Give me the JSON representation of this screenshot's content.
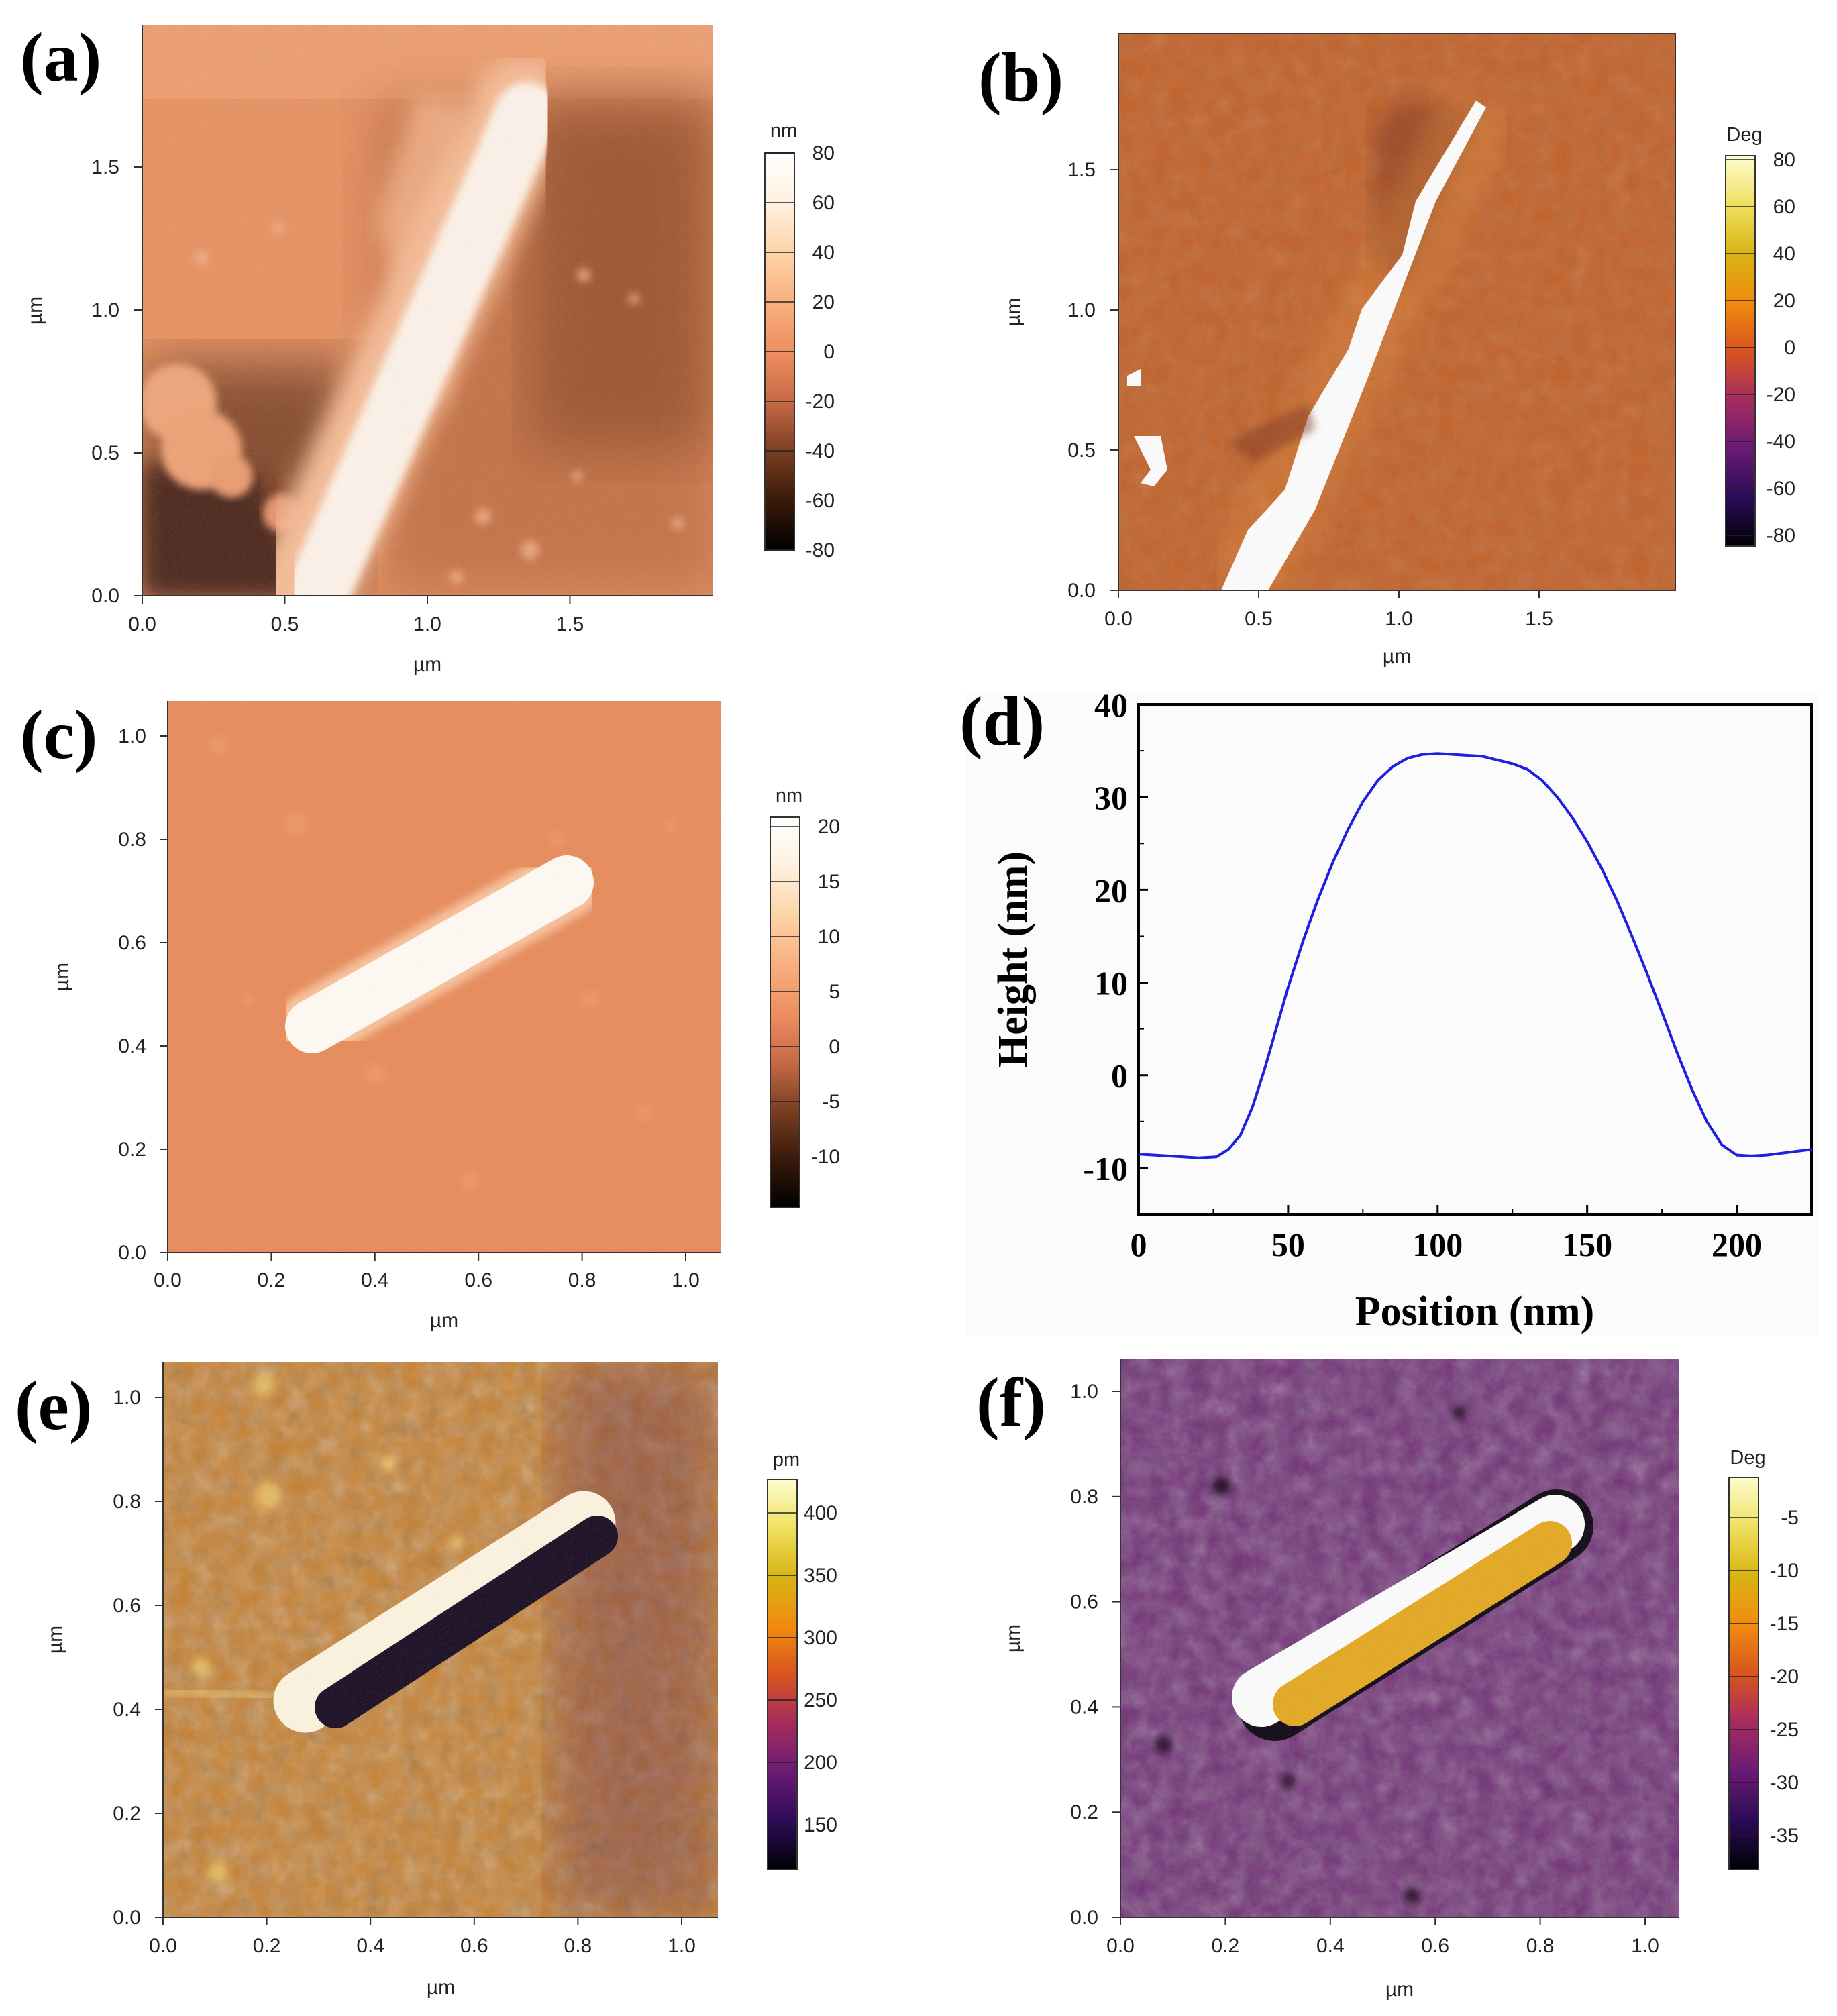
{
  "panels": [
    {
      "letter": "(a)",
      "xlabel": "µm",
      "ylabel": "µm",
      "xticks": [
        "0.0",
        "0.5",
        "1.0",
        "1.5"
      ],
      "yticks": [
        "0.0",
        "0.5",
        "1.0",
        "1.5"
      ],
      "scale": {
        "unit": "nm",
        "ticks": [
          "80",
          "60",
          "40",
          "20",
          "0",
          "-20",
          "-40",
          "-60",
          "-80"
        ],
        "colormap": [
          "#000000",
          "#3a1a0a",
          "#7a3f22",
          "#c86a45",
          "#ee8e62",
          "#f8b080",
          "#fdd4a8",
          "#fff1e1",
          "#ffffff"
        ]
      },
      "image_colors": {
        "background": "#e8905f",
        "dark_region": "#4a2212",
        "rod": "#fff4ea"
      }
    },
    {
      "letter": "(b)",
      "xlabel": "µm",
      "ylabel": "µm",
      "xticks": [
        "0.0",
        "0.5",
        "1.0",
        "1.5"
      ],
      "yticks": [
        "0.0",
        "0.5",
        "1.0",
        "1.5"
      ],
      "scale": {
        "unit": "Deg",
        "ticks": [
          "80",
          "60",
          "40",
          "20",
          "0",
          "-20",
          "-40",
          "-60",
          "-80"
        ],
        "colormap": [
          "#000004",
          "#2c0b56",
          "#6a1b73",
          "#a52c5f",
          "#d9541e",
          "#f08c0e",
          "#d8b414",
          "#f0e060",
          "#fcfdd0"
        ]
      },
      "image_colors": {
        "background": "#c25a1e",
        "dark_region": "#7a2f14",
        "rod": "#ffffff"
      }
    },
    {
      "letter": "(c)",
      "xlabel": "µm",
      "ylabel": "µm",
      "xticks": [
        "0.0",
        "0.2",
        "0.4",
        "0.6",
        "0.8",
        "1.0"
      ],
      "yticks": [
        "0.0",
        "0.2",
        "0.4",
        "0.6",
        "0.8",
        "1.0"
      ],
      "scale": {
        "unit": "nm",
        "ticks": [
          "20",
          "15",
          "10",
          "5",
          "0",
          "-5",
          "-10"
        ],
        "colormap": [
          "#000000",
          "#3a1a0a",
          "#7a3f22",
          "#c86a45",
          "#ee8e62",
          "#f8b080",
          "#fdd4a8",
          "#fff1e1",
          "#ffffff"
        ]
      },
      "image_colors": {
        "background": "#e88c5c",
        "rod": "#fffaf3"
      }
    },
    {
      "letter": "(f)",
      "xlabel": "µm",
      "ylabel": "µm",
      "xticks": [
        "0.0",
        "0.2",
        "0.4",
        "0.6",
        "0.8",
        "1.0"
      ],
      "yticks": [
        "0.0",
        "0.2",
        "0.4",
        "0.6",
        "0.8",
        "1.0"
      ],
      "scale": {
        "unit": "Deg",
        "ticks": [
          "-5",
          "-10",
          "-15",
          "-20",
          "-25",
          "-30",
          "-35"
        ],
        "colormap": [
          "#000004",
          "#2c0b56",
          "#6a1b73",
          "#a52c5f",
          "#d9541e",
          "#f08c0e",
          "#d8b414",
          "#f0e060",
          "#fcfdd0"
        ]
      },
      "image_colors": {
        "background": "#6a2470",
        "rod_light": "#ffffff",
        "rod_fill": "#e6a81c"
      }
    },
    {
      "letter": "(e)",
      "xlabel": "µm",
      "ylabel": "µm",
      "xticks": [
        "0.0",
        "0.2",
        "0.4",
        "0.6",
        "0.8",
        "1.0"
      ],
      "yticks": [
        "0.0",
        "0.2",
        "0.4",
        "0.6",
        "0.8",
        "1.0"
      ],
      "scale": {
        "unit": "pm",
        "ticks": [
          "400",
          "350",
          "300",
          "250",
          "200",
          "150"
        ],
        "colormap": [
          "#000004",
          "#2c0b56",
          "#6a1b73",
          "#a52c5f",
          "#d9541e",
          "#f08c0e",
          "#d8b414",
          "#f0e060",
          "#fcfdd0"
        ]
      },
      "image_colors": {
        "background": "#c77a22",
        "rod_light": "#fff6e0",
        "rod_dark": "#14071e"
      }
    }
  ],
  "chart_data": {
    "type": "line",
    "letter": "(d)",
    "xlabel": "Position (nm)",
    "ylabel": "Height (nm)",
    "xlim": [
      0,
      225
    ],
    "ylim": [
      -15,
      40
    ],
    "xticks": [
      0,
      50,
      100,
      150,
      200
    ],
    "yticks": [
      -10,
      0,
      10,
      20,
      30,
      40
    ],
    "line_color": "#1f1fe0",
    "x": [
      0,
      10,
      20,
      26,
      30,
      34,
      38,
      42,
      46,
      50,
      55,
      60,
      65,
      70,
      75,
      80,
      85,
      90,
      95,
      100,
      105,
      110,
      115,
      120,
      125,
      130,
      135,
      140,
      145,
      150,
      155,
      160,
      165,
      170,
      175,
      180,
      185,
      190,
      195,
      200,
      205,
      210,
      215,
      220,
      225
    ],
    "y": [
      -8.5,
      -8.7,
      -8.9,
      -8.8,
      -8.0,
      -6.5,
      -3.5,
      0.5,
      5.0,
      9.5,
      14.5,
      19.0,
      23.0,
      26.5,
      29.5,
      31.8,
      33.3,
      34.2,
      34.6,
      34.7,
      34.6,
      34.5,
      34.4,
      34.0,
      33.6,
      33.0,
      31.8,
      30.0,
      27.8,
      25.2,
      22.2,
      18.8,
      15.0,
      11.0,
      6.8,
      2.5,
      -1.5,
      -5.0,
      -7.5,
      -8.6,
      -8.7,
      -8.6,
      -8.4,
      -8.2,
      -8.0
    ]
  }
}
